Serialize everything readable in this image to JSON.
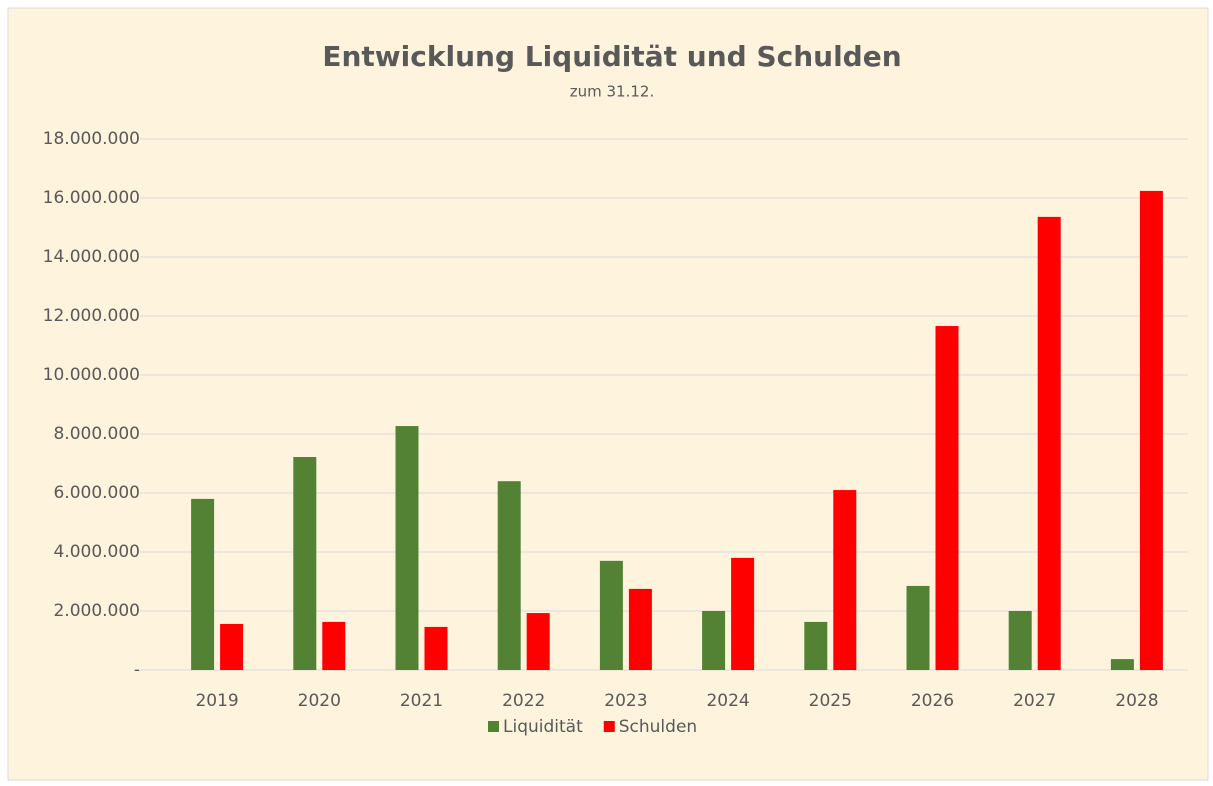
{
  "chart_data": {
    "type": "bar",
    "title": "Entwicklung Liquidität und Schulden",
    "subtitle": "zum 31.12.",
    "categories": [
      "2019",
      "2020",
      "2021",
      "2022",
      "2023",
      "2024",
      "2025",
      "2026",
      "2027",
      "2028"
    ],
    "series": [
      {
        "name": "Liquidität",
        "color": "#548235",
        "values": [
          5800000,
          7220000,
          8270000,
          6400000,
          3700000,
          2000000,
          1630000,
          2850000,
          2000000,
          370000
        ]
      },
      {
        "name": "Schulden",
        "color": "#ff0000",
        "values": [
          1560000,
          1630000,
          1460000,
          1930000,
          2750000,
          3800000,
          6100000,
          11660000,
          15360000,
          16240000
        ]
      }
    ],
    "ylim": [
      0,
      18000000
    ],
    "yticks": [
      {
        "value": 0,
        "label": "-"
      },
      {
        "value": 2000000,
        "label": "2.000.000"
      },
      {
        "value": 4000000,
        "label": "4.000.000"
      },
      {
        "value": 6000000,
        "label": "6.000.000"
      },
      {
        "value": 8000000,
        "label": "8.000.000"
      },
      {
        "value": 10000000,
        "label": "10.000.000"
      },
      {
        "value": 12000000,
        "label": "12.000.000"
      },
      {
        "value": 14000000,
        "label": "14.000.000"
      },
      {
        "value": 16000000,
        "label": "16.000.000"
      },
      {
        "value": 18000000,
        "label": "18.000.000"
      }
    ],
    "grid": true,
    "legend": "bottom"
  }
}
